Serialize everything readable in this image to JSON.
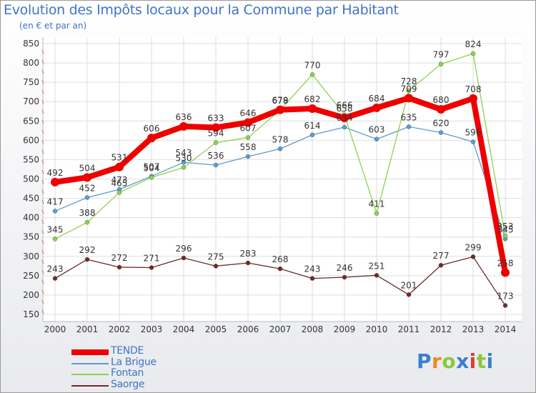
{
  "header": {
    "title": "Evolution des Impôts locaux pour la Commune par Habitant",
    "subtitle": "(en € et par an)"
  },
  "logo": {
    "text": "Proxiti",
    "letters": [
      "P",
      "r",
      "o",
      "x",
      "i",
      "t",
      "i"
    ],
    "colors": [
      "#3a7fd0",
      "#f08a1e",
      "#8cc63f",
      "#3a7fd0",
      "#e03c31",
      "#8cc63f",
      "#3a7fd0"
    ]
  },
  "chart_data": {
    "type": "line",
    "title": "Evolution des Impôts locaux pour la Commune par Habitant",
    "subtitle": "(en € et par an)",
    "xlabel": "",
    "ylabel": "",
    "categories": [
      "2000",
      "2001",
      "2002",
      "2003",
      "2004",
      "2005",
      "2006",
      "2007",
      "2008",
      "2009",
      "2010",
      "2011",
      "2012",
      "2013",
      "2014"
    ],
    "ylim": [
      150,
      850
    ],
    "yticks": [
      150,
      200,
      250,
      300,
      350,
      400,
      450,
      500,
      550,
      600,
      650,
      700,
      750,
      800,
      850
    ],
    "grid": true,
    "legend_position": "bottom-left",
    "series": [
      {
        "name": "Saorge",
        "color": "#6e2a2a",
        "values": [
          243,
          292,
          272,
          271,
          296,
          275,
          283,
          268,
          243,
          246,
          251,
          201,
          277,
          299,
          173
        ]
      },
      {
        "name": "La Brigue",
        "color": "#5b9bd5",
        "values": [
          417,
          452,
          473,
          507,
          543,
          536,
          558,
          578,
          614,
          634,
          603,
          635,
          620,
          596,
          345
        ]
      },
      {
        "name": "Fontan",
        "color": "#8fd14f",
        "values": [
          345,
          388,
          465,
          504,
          530,
          594,
          607,
          678,
          770,
          666,
          411,
          728,
          797,
          824,
          353
        ]
      },
      {
        "name": "TENDE",
        "color": "#ee0000",
        "values": [
          492,
          504,
          531,
          606,
          636,
          633,
          646,
          679,
          682,
          658,
          684,
          709,
          680,
          708,
          258
        ]
      }
    ],
    "legend_order": [
      "TENDE",
      "La Brigue",
      "Fontan",
      "Saorge"
    ]
  }
}
